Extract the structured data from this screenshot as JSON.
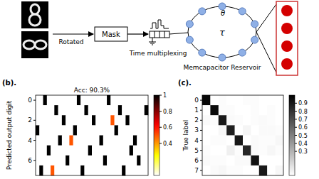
{
  "diagram": {
    "rotated_label": "Rotated",
    "mask_label": "Mask",
    "time_multiplexing_label": "Time multiplexing",
    "theta_label": "θ",
    "tau_label": "τ",
    "reservoir_label": "Memcapacitor Reservoir"
  },
  "chart_data": [
    {
      "type": "heatmap",
      "panel": "(b).",
      "title": "Acc: 90.3%",
      "ylabel": "Predicted output digit",
      "color": "hot_r",
      "tick_labels": "y",
      "categories": [
        "0",
        null,
        "2",
        null,
        "4",
        null,
        "6",
        null
      ],
      "cells": [
        [
          0,
          0,
          1,
          0,
          0,
          0,
          0,
          0,
          0,
          0,
          0,
          1,
          0,
          0,
          0,
          0,
          0,
          0,
          0,
          1,
          0,
          0,
          0,
          0,
          0,
          0,
          0,
          0,
          0,
          0
        ],
        [
          0,
          0,
          0,
          0,
          0,
          1,
          0,
          0,
          0,
          0,
          0,
          0,
          0,
          1,
          0,
          0,
          0,
          0,
          0,
          0,
          0,
          0,
          1,
          0,
          0,
          0,
          0,
          0,
          0,
          1
        ],
        [
          0,
          0,
          0,
          0,
          0,
          0,
          0,
          1,
          0,
          0,
          0,
          0,
          0,
          0,
          0,
          1,
          0,
          0,
          0,
          0,
          0.5,
          0,
          0,
          0,
          1,
          0,
          0,
          0,
          0,
          0
        ],
        [
          1,
          0,
          0,
          0,
          0,
          0,
          0,
          0,
          0,
          0,
          1,
          0,
          0,
          0,
          0,
          0,
          0,
          0,
          0,
          0,
          0,
          1,
          0,
          0,
          0,
          0,
          0,
          0,
          0,
          0
        ],
        [
          0,
          0,
          0,
          0,
          0,
          0,
          1,
          0,
          0,
          0.5,
          0,
          0,
          0,
          0,
          0,
          0,
          0,
          1,
          0,
          0,
          0,
          0,
          0,
          0,
          0,
          0,
          1,
          0,
          0,
          0
        ],
        [
          0,
          0,
          0,
          1,
          0,
          0,
          0,
          0,
          0,
          0,
          0,
          0,
          0,
          0,
          1,
          0,
          0,
          0,
          0,
          0,
          0,
          0,
          0,
          0,
          0,
          1,
          0,
          0,
          0,
          0
        ],
        [
          0,
          0,
          0,
          0,
          0,
          0,
          0,
          0,
          1,
          0,
          0,
          0,
          0,
          0,
          0,
          0,
          0,
          0,
          1,
          0,
          0,
          0,
          0,
          0,
          0,
          0,
          0,
          1,
          0,
          0
        ],
        [
          0,
          1,
          0,
          0,
          0.5,
          0,
          0,
          0,
          0,
          0,
          0,
          0,
          1,
          0,
          0,
          0,
          0,
          0,
          0,
          0,
          0,
          0,
          0,
          1,
          0,
          0,
          0,
          0,
          0,
          0
        ]
      ],
      "colorbar": {
        "range": [
          0,
          1
        ],
        "ticks": [
          0.4,
          0.6,
          0.8,
          1
        ]
      }
    },
    {
      "type": "heatmap",
      "panel": "(c).",
      "ylabel": "True label",
      "color": "gray_r",
      "tick_labels": "y",
      "categories": [
        "0",
        "1",
        "2",
        "3",
        "4",
        "5",
        "6",
        "7"
      ],
      "x_categories": [
        null,
        null,
        null,
        null,
        null,
        null,
        null,
        null,
        null,
        null
      ],
      "cells": [
        [
          0.97,
          0,
          0.01,
          0,
          0,
          0.01,
          0.01,
          0,
          0,
          0
        ],
        [
          0,
          0.96,
          0.01,
          0.01,
          0,
          0,
          0.01,
          0,
          0.01,
          0
        ],
        [
          0.02,
          0.01,
          0.9,
          0.02,
          0.01,
          0,
          0.01,
          0.02,
          0.01,
          0
        ],
        [
          0,
          0,
          0.03,
          0.88,
          0,
          0.04,
          0,
          0.02,
          0.02,
          0.01
        ],
        [
          0,
          0.01,
          0.01,
          0,
          0.91,
          0,
          0.02,
          0.01,
          0.01,
          0.03
        ],
        [
          0.01,
          0,
          0,
          0.06,
          0.01,
          0.85,
          0.02,
          0.01,
          0.03,
          0.01
        ],
        [
          0.02,
          0.01,
          0.01,
          0,
          0.02,
          0.02,
          0.93,
          0,
          0,
          0
        ],
        [
          0,
          0.02,
          0.03,
          0.01,
          0.01,
          0,
          0,
          0.9,
          0,
          0.03
        ]
      ],
      "colorbar": {
        "range": [
          0,
          1
        ],
        "ticks": [
          0.3,
          0.4,
          0.5,
          0.6,
          0.7,
          0.8,
          0.9
        ]
      }
    }
  ]
}
